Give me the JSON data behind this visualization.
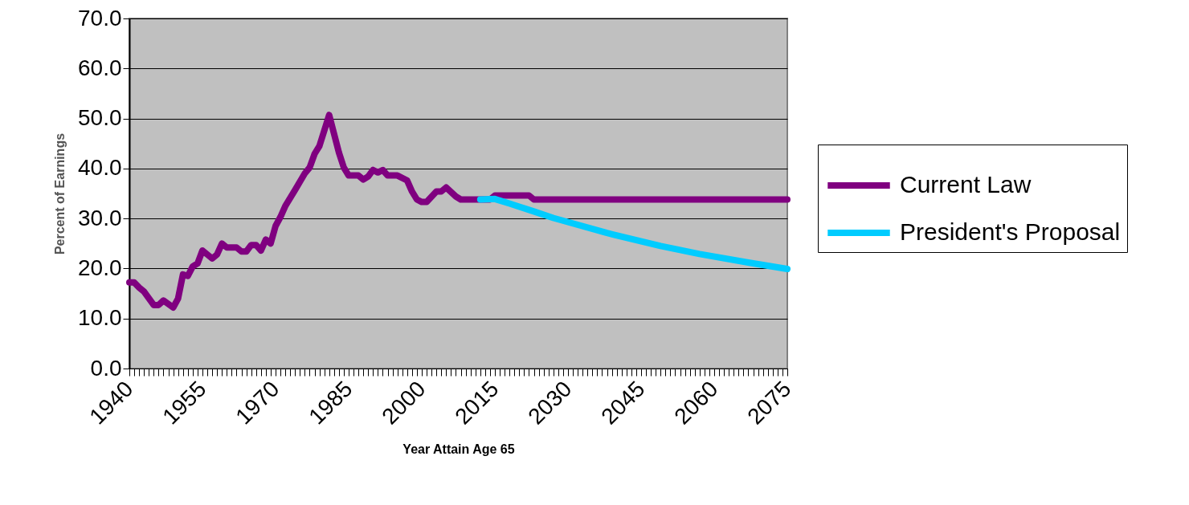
{
  "chart_data": {
    "type": "line",
    "xlabel": "Year Attain Age 65",
    "ylabel": "Percent of Earnings",
    "xlim": [
      1940,
      2075
    ],
    "ylim": [
      0,
      70
    ],
    "xticks": [
      1940,
      {
        "value": 1941,
        "label": null
      },
      {
        "value": 1942,
        "label": null
      },
      {
        "value": 1943,
        "label": null
      },
      {
        "value": 1944,
        "label": null
      },
      {
        "value": 1945,
        "label": null
      },
      {
        "value": 1946,
        "label": null
      },
      {
        "value": 1947,
        "label": null
      },
      {
        "value": 1948,
        "label": null
      },
      {
        "value": 1949,
        "label": null
      },
      {
        "value": 1950,
        "label": null
      },
      {
        "value": 1951,
        "label": null
      },
      {
        "value": 1952,
        "label": null
      },
      {
        "value": 1953,
        "label": null
      },
      {
        "value": 1954,
        "label": null
      },
      1955,
      {
        "value": 1956,
        "label": null
      },
      {
        "value": 1957,
        "label": null
      },
      {
        "value": 1958,
        "label": null
      },
      {
        "value": 1959,
        "label": null
      },
      {
        "value": 1960,
        "label": null
      },
      {
        "value": 1961,
        "label": null
      },
      {
        "value": 1962,
        "label": null
      },
      {
        "value": 1963,
        "label": null
      },
      {
        "value": 1964,
        "label": null
      },
      {
        "value": 1965,
        "label": null
      },
      {
        "value": 1966,
        "label": null
      },
      {
        "value": 1967,
        "label": null
      },
      {
        "value": 1968,
        "label": null
      },
      {
        "value": 1969,
        "label": null
      },
      1970,
      {
        "value": 1971,
        "label": null
      },
      {
        "value": 1972,
        "label": null
      },
      {
        "value": 1973,
        "label": null
      },
      {
        "value": 1974,
        "label": null
      },
      {
        "value": 1975,
        "label": null
      },
      {
        "value": 1976,
        "label": null
      },
      {
        "value": 1977,
        "label": null
      },
      {
        "value": 1978,
        "label": null
      },
      {
        "value": 1979,
        "label": null
      },
      {
        "value": 1980,
        "label": null
      },
      {
        "value": 1981,
        "label": null
      },
      {
        "value": 1982,
        "label": null
      },
      {
        "value": 1983,
        "label": null
      },
      {
        "value": 1984,
        "label": null
      },
      1985,
      {
        "value": 1986,
        "label": null
      },
      {
        "value": 1987,
        "label": null
      },
      {
        "value": 1988,
        "label": null
      },
      {
        "value": 1989,
        "label": null
      },
      {
        "value": 1990,
        "label": null
      },
      {
        "value": 1991,
        "label": null
      },
      {
        "value": 1992,
        "label": null
      },
      {
        "value": 1993,
        "label": null
      },
      {
        "value": 1994,
        "label": null
      },
      {
        "value": 1995,
        "label": null
      },
      {
        "value": 1996,
        "label": null
      },
      {
        "value": 1997,
        "label": null
      },
      {
        "value": 1998,
        "label": null
      },
      {
        "value": 1999,
        "label": null
      },
      2000,
      {
        "value": 2001,
        "label": null
      },
      {
        "value": 2002,
        "label": null
      },
      {
        "value": 2003,
        "label": null
      },
      {
        "value": 2004,
        "label": null
      },
      {
        "value": 2005,
        "label": null
      },
      {
        "value": 2006,
        "label": null
      },
      {
        "value": 2007,
        "label": null
      },
      {
        "value": 2008,
        "label": null
      },
      {
        "value": 2009,
        "label": null
      },
      {
        "value": 2010,
        "label": null
      },
      {
        "value": 2011,
        "label": null
      },
      {
        "value": 2012,
        "label": null
      },
      {
        "value": 2013,
        "label": null
      },
      {
        "value": 2014,
        "label": null
      },
      2015,
      {
        "value": 2016,
        "label": null
      },
      {
        "value": 2017,
        "label": null
      },
      {
        "value": 2018,
        "label": null
      },
      {
        "value": 2019,
        "label": null
      },
      {
        "value": 2020,
        "label": null
      },
      {
        "value": 2021,
        "label": null
      },
      {
        "value": 2022,
        "label": null
      },
      {
        "value": 2023,
        "label": null
      },
      {
        "value": 2024,
        "label": null
      },
      {
        "value": 2025,
        "label": null
      },
      {
        "value": 2026,
        "label": null
      },
      {
        "value": 2027,
        "label": null
      },
      {
        "value": 2028,
        "label": null
      },
      {
        "value": 2029,
        "label": null
      },
      2030,
      {
        "value": 2031,
        "label": null
      },
      {
        "value": 2032,
        "label": null
      },
      {
        "value": 2033,
        "label": null
      },
      {
        "value": 2034,
        "label": null
      },
      {
        "value": 2035,
        "label": null
      },
      {
        "value": 2036,
        "label": null
      },
      {
        "value": 2037,
        "label": null
      },
      {
        "value": 2038,
        "label": null
      },
      {
        "value": 2039,
        "label": null
      },
      {
        "value": 2040,
        "label": null
      },
      {
        "value": 2041,
        "label": null
      },
      {
        "value": 2042,
        "label": null
      },
      {
        "value": 2043,
        "label": null
      },
      {
        "value": 2044,
        "label": null
      },
      2045,
      {
        "value": 2046,
        "label": null
      },
      {
        "value": 2047,
        "label": null
      },
      {
        "value": 2048,
        "label": null
      },
      {
        "value": 2049,
        "label": null
      },
      {
        "value": 2050,
        "label": null
      },
      {
        "value": 2051,
        "label": null
      },
      {
        "value": 2052,
        "label": null
      },
      {
        "value": 2053,
        "label": null
      },
      {
        "value": 2054,
        "label": null
      },
      {
        "value": 2055,
        "label": null
      },
      {
        "value": 2056,
        "label": null
      },
      {
        "value": 2057,
        "label": null
      },
      {
        "value": 2058,
        "label": null
      },
      {
        "value": 2059,
        "label": null
      },
      2060,
      {
        "value": 2061,
        "label": null
      },
      {
        "value": 2062,
        "label": null
      },
      {
        "value": 2063,
        "label": null
      },
      {
        "value": 2064,
        "label": null
      },
      {
        "value": 2065,
        "label": null
      },
      {
        "value": 2066,
        "label": null
      },
      {
        "value": 2067,
        "label": null
      },
      {
        "value": 2068,
        "label": null
      },
      {
        "value": 2069,
        "label": null
      },
      {
        "value": 2070,
        "label": null
      },
      {
        "value": 2071,
        "label": null
      },
      {
        "value": 2072,
        "label": null
      },
      {
        "value": 2073,
        "label": null
      },
      {
        "value": 2074,
        "label": null
      },
      2075
    ],
    "yticks": [
      {
        "value": 0,
        "label": "0.0"
      },
      {
        "value": 10,
        "label": "10.0"
      },
      {
        "value": 20,
        "label": "20.0"
      },
      {
        "value": 30,
        "label": "30.0"
      },
      {
        "value": 40,
        "label": "40.0"
      },
      {
        "value": 50,
        "label": "50.0"
      },
      {
        "value": 60,
        "label": "60.0"
      },
      {
        "value": 70,
        "label": "70.0"
      }
    ],
    "grid": "y",
    "legend": "right",
    "line_style": "solid",
    "series": [
      {
        "name": "Current Law",
        "color": "#800080",
        "x": [
          1940,
          1941,
          1942,
          1943,
          1945,
          1946,
          1947,
          1949,
          1950,
          1951,
          1952,
          1953,
          1954,
          1955,
          1957,
          1958,
          1959,
          1960,
          1962,
          1963,
          1964,
          1965,
          1966,
          1967,
          1968,
          1969,
          1970,
          1971,
          1972,
          1974,
          1976,
          1977,
          1978,
          1979,
          1981,
          1983,
          1984,
          1985,
          1987,
          1988,
          1989,
          1990,
          1991,
          1992,
          1993,
          1995,
          1997,
          1998,
          1999,
          2000,
          2001,
          2003,
          2004,
          2005,
          2007,
          2008,
          2014,
          2015,
          2022,
          2023,
          2075
        ],
        "values": [
          17.2,
          17.2,
          16.2,
          15.4,
          12.7,
          12.7,
          13.6,
          12.2,
          14.0,
          18.8,
          18.5,
          20.4,
          21.0,
          23.6,
          22.0,
          22.8,
          25.0,
          24.2,
          24.2,
          23.4,
          23.4,
          24.7,
          24.7,
          23.6,
          25.8,
          25.0,
          28.5,
          30.3,
          32.5,
          35.7,
          39.0,
          40.2,
          42.9,
          44.5,
          50.7,
          43.2,
          40.2,
          38.6,
          38.6,
          37.8,
          38.4,
          39.7,
          39.2,
          39.7,
          38.6,
          38.6,
          37.6,
          35.4,
          33.8,
          33.3,
          33.3,
          35.4,
          35.4,
          36.2,
          34.4,
          33.8,
          33.8,
          34.6,
          34.6,
          33.8,
          33.8
        ]
      },
      {
        "name": "President's Proposal",
        "color": "#00ccff",
        "x": [
          2012,
          2015,
          2018,
          2023,
          2027,
          2038,
          2049,
          2057,
          2067,
          2075
        ],
        "values": [
          33.8,
          33.9,
          33.0,
          31.4,
          30.1,
          27.1,
          24.5,
          22.9,
          21.2,
          19.9
        ]
      }
    ]
  }
}
